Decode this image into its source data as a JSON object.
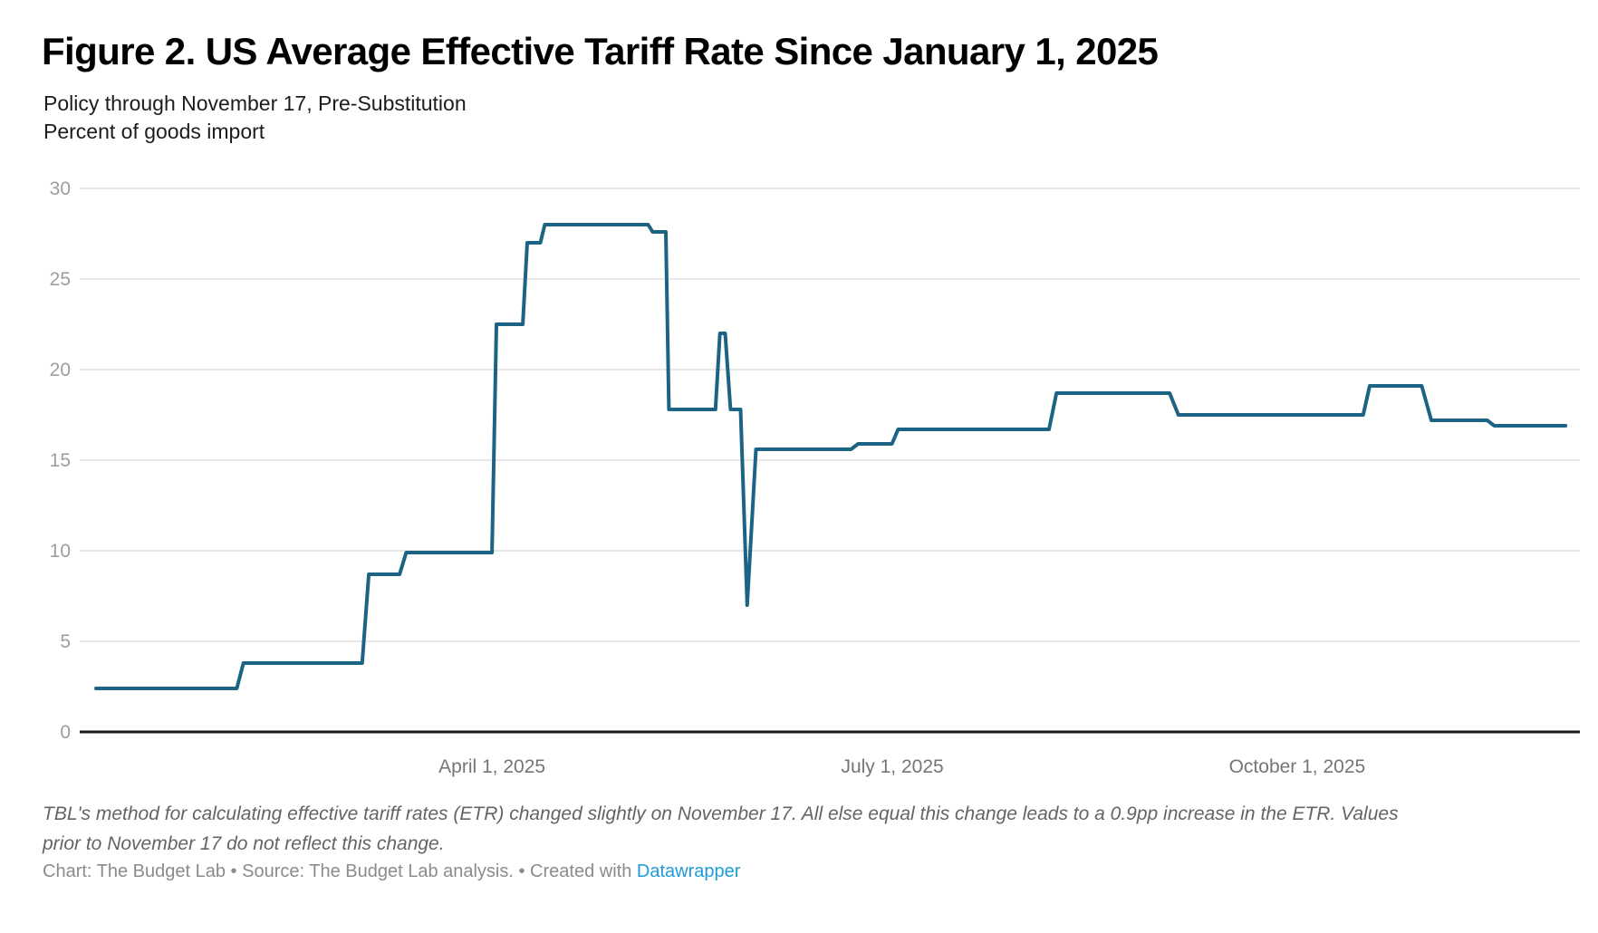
{
  "header": {
    "title": "Figure 2. US Average Effective Tariff Rate Since January 1, 2025",
    "subtitle1": "Policy through November 17, Pre-Substitution",
    "subtitle2": "Percent of goods import"
  },
  "footer": {
    "note1": "TBL's method for calculating effective tariff rates (ETR) changed slightly on November 17. All else equal this change leads to a 0.9pp increase in the ETR. Values",
    "note2": "prior to November 17 do not reflect this change.",
    "credit_prefix": "Chart: The Budget Lab • Source: The Budget Lab analysis. • Created with ",
    "credit_link": "Datawrapper"
  },
  "colors": {
    "line": "#1d6384",
    "gridline": "#e7e7e7",
    "baseline": "#161616",
    "y_tick_text": "#9e9e9e",
    "x_tick_text": "#757575",
    "link_blue": "#1e9cd8"
  },
  "chart_data": {
    "type": "line",
    "title": "US Average Effective Tariff Rate Since January 1, 2025",
    "subtitle": "Policy through November 17, Pre-Substitution",
    "ylabel": "Percent of goods import",
    "x_unit": "days since 2025-01-01",
    "xlim": [
      0,
      334
    ],
    "ylim": [
      0,
      30
    ],
    "grid": "horizontal",
    "legend": "none",
    "y_ticks": [
      0,
      5,
      10,
      15,
      20,
      25,
      30
    ],
    "x_ticks": [
      {
        "day": 90,
        "label": "April 1, 2025"
      },
      {
        "day": 181,
        "label": "July 1, 2025"
      },
      {
        "day": 273,
        "label": "October 1, 2025"
      }
    ],
    "series": [
      {
        "name": "US average effective tariff rate (percent of goods import)",
        "points": [
          [
            0,
            2.4
          ],
          [
            32,
            2.4
          ],
          [
            33.5,
            3.8
          ],
          [
            60.5,
            3.8
          ],
          [
            62,
            8.7
          ],
          [
            69,
            8.7
          ],
          [
            70.5,
            9.9
          ],
          [
            90,
            9.9
          ],
          [
            91,
            22.5
          ],
          [
            97,
            22.5
          ],
          [
            98,
            27.0
          ],
          [
            101,
            27.0
          ],
          [
            102,
            28.0
          ],
          [
            125.5,
            28.0
          ],
          [
            126.5,
            27.6
          ],
          [
            129.5,
            27.6
          ],
          [
            130.2,
            17.8
          ],
          [
            140.8,
            17.8
          ],
          [
            141.8,
            22.0
          ],
          [
            143,
            22.0
          ],
          [
            144.2,
            17.8
          ],
          [
            146.5,
            17.8
          ],
          [
            148,
            7.0
          ],
          [
            150,
            15.6
          ],
          [
            171.6,
            15.6
          ],
          [
            173.2,
            15.9
          ],
          [
            180.9,
            15.9
          ],
          [
            182.3,
            16.7
          ],
          [
            216.6,
            16.7
          ],
          [
            218.3,
            18.7
          ],
          [
            244,
            18.7
          ],
          [
            246,
            17.5
          ],
          [
            288,
            17.5
          ],
          [
            289.5,
            19.1
          ],
          [
            301.3,
            19.1
          ],
          [
            303.5,
            17.2
          ],
          [
            316.2,
            17.2
          ],
          [
            317.8,
            16.9
          ],
          [
            334,
            16.9
          ]
        ]
      }
    ]
  }
}
